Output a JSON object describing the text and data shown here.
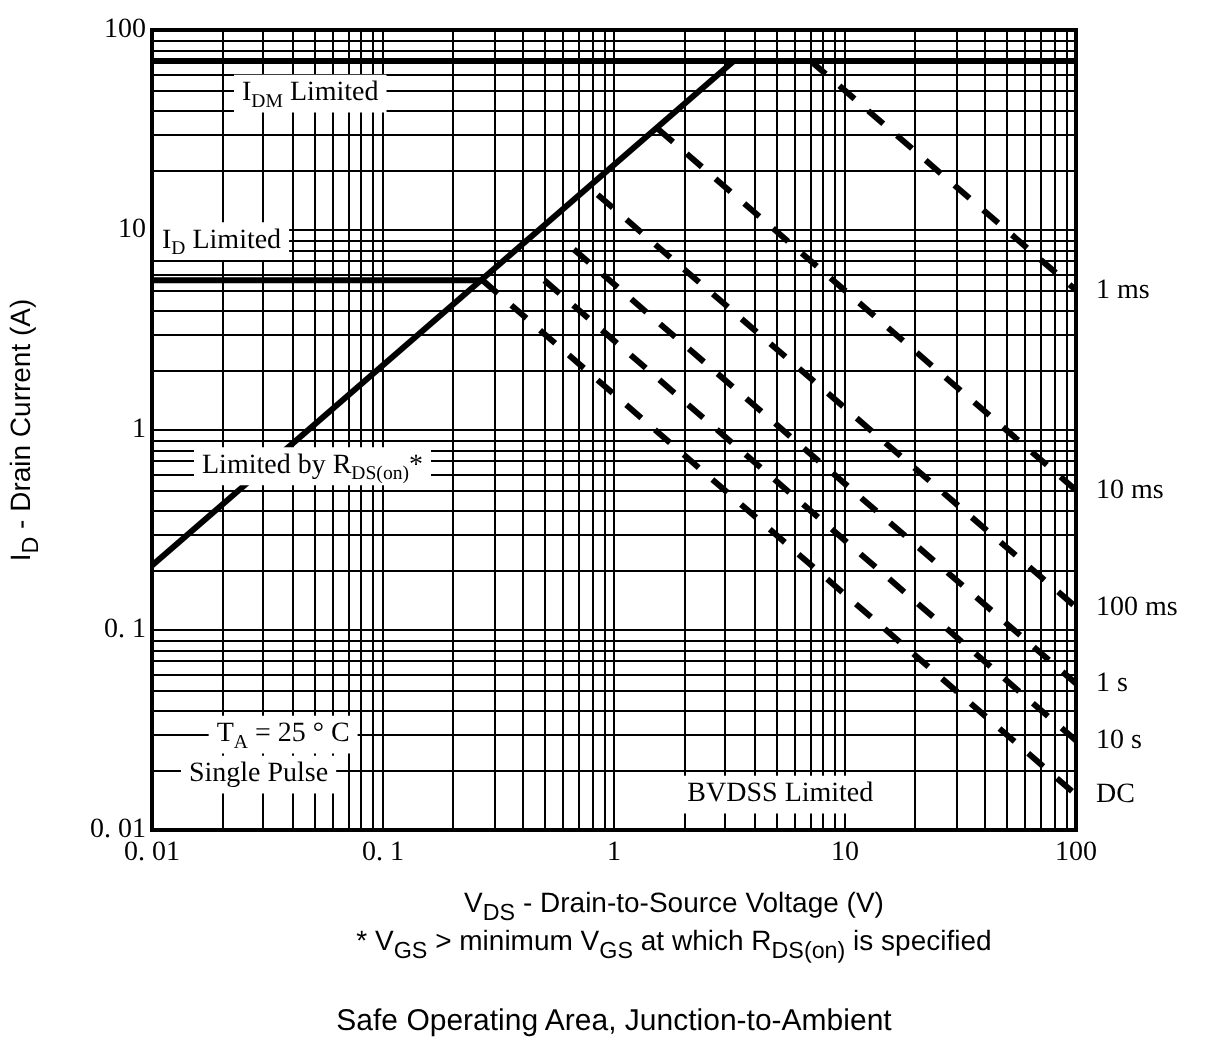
{
  "chart_data": {
    "type": "line",
    "title": "Safe Operating Area, Junction-to-Ambient",
    "xlabel": "V$_{DS}$ - Drain-to-Source Voltage (V)",
    "ylabel": "I$_{D}$ - Drain Current (A)",
    "log": "xy",
    "xlim": [
      0.01,
      100
    ],
    "ylim": [
      0.01,
      100
    ],
    "xticks": [
      {
        "value": 0.01,
        "label": "0. 01"
      },
      {
        "value": 0.1,
        "label": "0. 1"
      },
      1,
      10,
      100
    ],
    "yticks": [
      {
        "value": 0.01,
        "label": "0. 01"
      },
      {
        "value": 0.1,
        "label": "0. 1"
      },
      1,
      10,
      100
    ],
    "grid": true,
    "legend": false,
    "marker": "none",
    "series": [
      {
        "name": "I$_{DM}$ Limited",
        "color": "#000000",
        "line_style": "solid",
        "x": [
          0.01,
          100
        ],
        "values": [
          70,
          70
        ]
      },
      {
        "name": "I$_{D}$ Limited",
        "color": "#000000",
        "line_style": "solid",
        "x": [
          0.01,
          0.27
        ],
        "values": [
          5.6,
          5.6
        ]
      },
      {
        "name": "Limited by R$_{DS(on)}$*",
        "color": "#000000",
        "line_style": "solid",
        "x": [
          0.01,
          3.3
        ],
        "values": [
          0.21,
          70
        ]
      },
      {
        "name": "1 ms",
        "color": "#000000",
        "line_style": "dashed",
        "x": [
          7.1,
          100
        ],
        "values": [
          70,
          5
        ]
      },
      {
        "name": "10 ms",
        "color": "#000000",
        "line_style": "dashed",
        "x": [
          1.55,
          100
        ],
        "values": [
          32,
          0.5
        ]
      },
      {
        "name": "100 ms",
        "color": "#000000",
        "line_style": "dashed",
        "x": [
          0.85,
          100
        ],
        "values": [
          15,
          0.13
        ]
      },
      {
        "name": "1 s",
        "color": "#000000",
        "line_style": "dashed",
        "x": [
          0.67,
          100
        ],
        "values": [
          8,
          0.054
        ]
      },
      {
        "name": "10 s",
        "color": "#000000",
        "line_style": "dashed",
        "x": [
          0.5,
          100
        ],
        "values": [
          5.6,
          0.028
        ]
      },
      {
        "name": "DC",
        "color": "#000000",
        "line_style": "dashed",
        "x": [
          0.27,
          100
        ],
        "values": [
          5.6,
          0.015
        ]
      }
    ],
    "annotations": [
      "T$_{A}$ = 25 ° C",
      "Single Pulse",
      "BVDSS Limited",
      "* V$_{GS}$ > minimum V$_{GS}$ at which R$_{DS(on)}$ is specified"
    ]
  }
}
